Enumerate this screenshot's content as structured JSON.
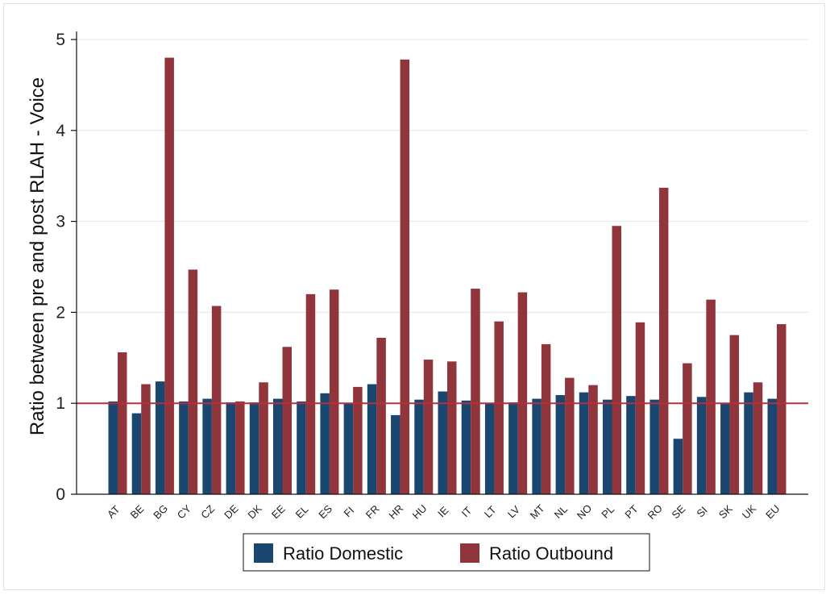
{
  "chart_data": {
    "type": "bar",
    "title": "",
    "xlabel": "",
    "ylabel": "Ratio between pre and post RLAH - Voice",
    "ylim": [
      0,
      5
    ],
    "yticks": [
      0,
      1,
      2,
      3,
      4,
      5
    ],
    "grid": true,
    "reference_line": 1,
    "legend_position": "bottom",
    "categories": [
      "AT",
      "BE",
      "BG",
      "CY",
      "CZ",
      "DE",
      "DK",
      "EE",
      "EL",
      "ES",
      "FI",
      "FR",
      "HR",
      "HU",
      "IE",
      "IT",
      "LT",
      "LV",
      "MT",
      "NL",
      "NO",
      "PL",
      "PT",
      "RO",
      "SE",
      "SI",
      "SK",
      "UK",
      "EU"
    ],
    "series": [
      {
        "name": "Ratio Domestic",
        "color": "#1a476f",
        "values": [
          1.02,
          0.89,
          1.24,
          1.02,
          1.05,
          1.01,
          1.01,
          1.05,
          1.02,
          1.11,
          1.0,
          1.21,
          0.87,
          1.04,
          1.13,
          1.03,
          1.0,
          1.01,
          1.05,
          1.09,
          1.12,
          1.04,
          1.08,
          1.04,
          0.61,
          1.07,
          1.0,
          1.12,
          1.05
        ]
      },
      {
        "name": "Ratio Outbound",
        "color": "#90353b",
        "values": [
          1.56,
          1.21,
          4.8,
          2.47,
          2.07,
          1.02,
          1.23,
          1.62,
          2.2,
          2.25,
          1.18,
          1.72,
          4.78,
          1.48,
          1.46,
          2.26,
          1.9,
          2.22,
          1.65,
          1.28,
          1.2,
          2.95,
          1.89,
          3.37,
          1.44,
          2.14,
          1.75,
          1.23,
          1.87
        ]
      }
    ],
    "reference_line_color": "#b5303a",
    "grid_color": "#e6e6e6"
  }
}
